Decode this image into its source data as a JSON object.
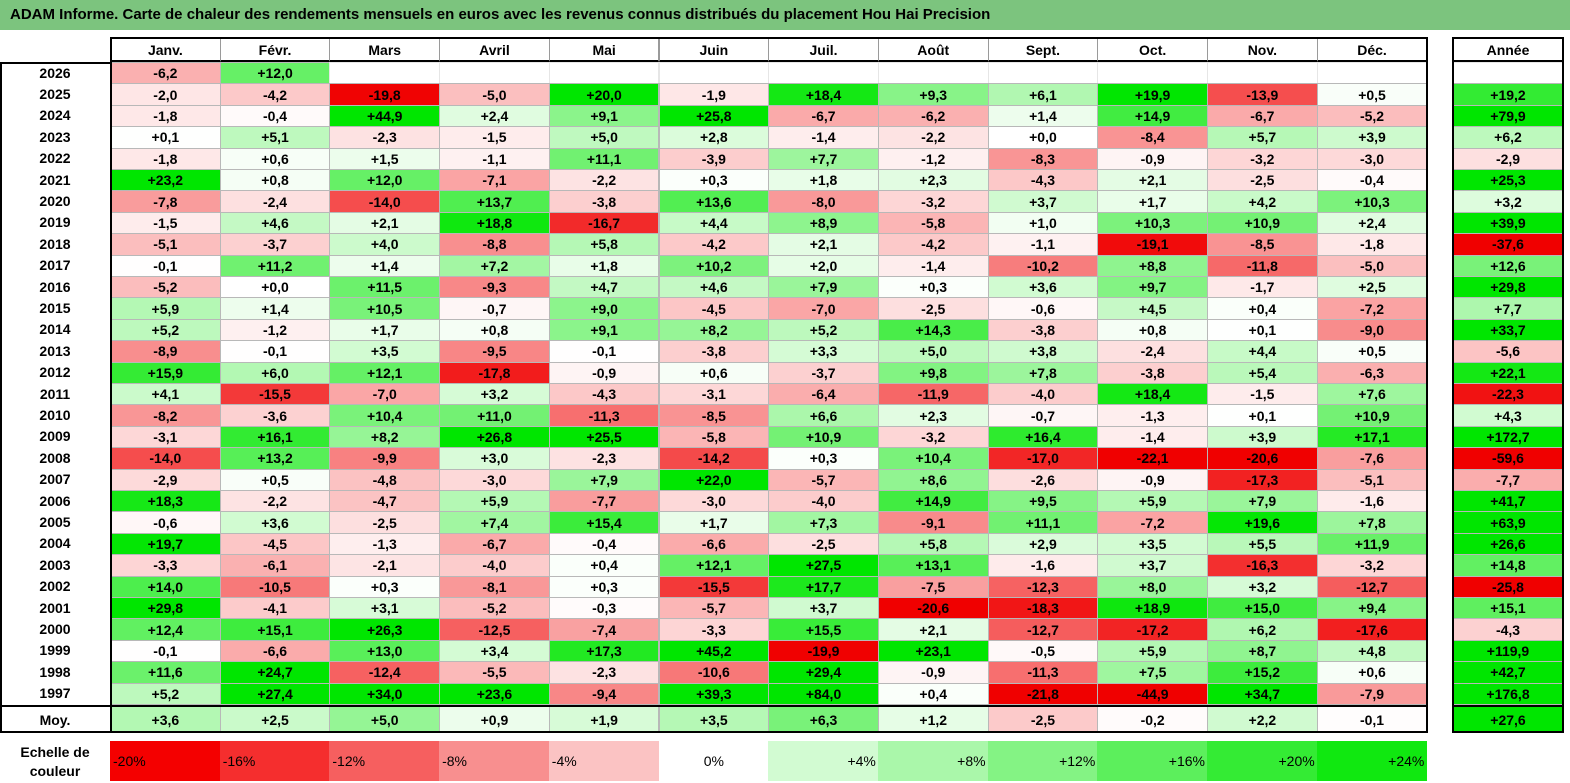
{
  "title": "ADAM Informe. Carte de chaleur des rendements mensuels en euros avec les revenus connus distribués du placement Hou Hai Precision",
  "chart_data": {
    "type": "heatmap",
    "columns": [
      "Janv.",
      "Févr.",
      "Mars",
      "Avril",
      "Mai",
      "Juin",
      "Juil.",
      "Août",
      "Sept.",
      "Oct.",
      "Nov.",
      "Déc."
    ],
    "year_column": "Année",
    "rows": [
      {
        "year": "2026",
        "months": [
          "-6,2",
          "+12,0",
          "",
          "",
          "",
          "",
          "",
          "",
          "",
          "",
          "",
          ""
        ],
        "total": ""
      },
      {
        "year": "2025",
        "months": [
          "-2,0",
          "-4,2",
          "-19,8",
          "-5,0",
          "+20,0",
          "-1,9",
          "+18,4",
          "+9,3",
          "+6,1",
          "+19,9",
          "-13,9",
          "+0,5"
        ],
        "total": "+19,2"
      },
      {
        "year": "2024",
        "months": [
          "-1,8",
          "-0,4",
          "+44,9",
          "+2,4",
          "+9,1",
          "+25,8",
          "-6,7",
          "-6,2",
          "+1,4",
          "+14,9",
          "-6,7",
          "-5,2"
        ],
        "total": "+79,9"
      },
      {
        "year": "2023",
        "months": [
          "+0,1",
          "+5,1",
          "-2,3",
          "-1,5",
          "+5,0",
          "+2,8",
          "-1,4",
          "-2,2",
          "+0,0",
          "-8,4",
          "+5,7",
          "+3,9"
        ],
        "total": "+6,2"
      },
      {
        "year": "2022",
        "months": [
          "-1,8",
          "+0,6",
          "+1,5",
          "-1,1",
          "+11,1",
          "-3,9",
          "+7,7",
          "-1,2",
          "-8,3",
          "-0,9",
          "-3,2",
          "-3,0"
        ],
        "total": "-2,9"
      },
      {
        "year": "2021",
        "months": [
          "+23,2",
          "+0,8",
          "+12,0",
          "-7,1",
          "-2,2",
          "+0,3",
          "+1,8",
          "+2,3",
          "-4,3",
          "+2,1",
          "-2,5",
          "-0,4"
        ],
        "total": "+25,3"
      },
      {
        "year": "2020",
        "months": [
          "-7,8",
          "-2,4",
          "-14,0",
          "+13,7",
          "-3,8",
          "+13,6",
          "-8,0",
          "-3,2",
          "+3,7",
          "+1,7",
          "+4,2",
          "+10,3"
        ],
        "total": "+3,2"
      },
      {
        "year": "2019",
        "months": [
          "-1,5",
          "+4,6",
          "+2,1",
          "+18,8",
          "-16,7",
          "+4,4",
          "+8,9",
          "-5,8",
          "+1,0",
          "+10,3",
          "+10,9",
          "+2,4"
        ],
        "total": "+39,9"
      },
      {
        "year": "2018",
        "months": [
          "-5,1",
          "-3,7",
          "+4,0",
          "-8,8",
          "+5,8",
          "-4,2",
          "+2,1",
          "-4,2",
          "-1,1",
          "-19,1",
          "-8,5",
          "-1,8"
        ],
        "total": "-37,6"
      },
      {
        "year": "2017",
        "months": [
          "-0,1",
          "+11,2",
          "+1,4",
          "+7,2",
          "+1,8",
          "+10,2",
          "+2,0",
          "-1,4",
          "-10,2",
          "+8,8",
          "-11,8",
          "-5,0"
        ],
        "total": "+12,6"
      },
      {
        "year": "2016",
        "months": [
          "-5,2",
          "+0,0",
          "+11,5",
          "-9,3",
          "+4,7",
          "+4,6",
          "+7,9",
          "+0,3",
          "+3,6",
          "+9,7",
          "-1,7",
          "+2,5"
        ],
        "total": "+29,8"
      },
      {
        "year": "2015",
        "months": [
          "+5,9",
          "+1,4",
          "+10,5",
          "-0,7",
          "+9,0",
          "-4,5",
          "-7,0",
          "-2,5",
          "-0,6",
          "+4,5",
          "+0,4",
          "-7,2"
        ],
        "total": "+7,7"
      },
      {
        "year": "2014",
        "months": [
          "+5,2",
          "-1,2",
          "+1,7",
          "+0,8",
          "+9,1",
          "+8,2",
          "+5,2",
          "+14,3",
          "-3,8",
          "+0,8",
          "+0,1",
          "-9,0"
        ],
        "total": "+33,7"
      },
      {
        "year": "2013",
        "months": [
          "-8,9",
          "-0,1",
          "+3,5",
          "-9,5",
          "-0,1",
          "-3,8",
          "+3,3",
          "+5,0",
          "+3,8",
          "-2,4",
          "+4,4",
          "+0,5"
        ],
        "total": "-5,6"
      },
      {
        "year": "2012",
        "months": [
          "+15,9",
          "+6,0",
          "+12,1",
          "-17,8",
          "-0,9",
          "+0,6",
          "-3,7",
          "+9,8",
          "+7,8",
          "-3,8",
          "+5,4",
          "-6,3"
        ],
        "total": "+22,1"
      },
      {
        "year": "2011",
        "months": [
          "+4,1",
          "-15,5",
          "-7,0",
          "+3,2",
          "-4,3",
          "-3,1",
          "-6,4",
          "-11,9",
          "-4,0",
          "+18,4",
          "-1,5",
          "+7,6"
        ],
        "total": "-22,3"
      },
      {
        "year": "2010",
        "months": [
          "-8,2",
          "-3,6",
          "+10,4",
          "+11,0",
          "-11,3",
          "-8,5",
          "+6,6",
          "+2,3",
          "-0,7",
          "-1,3",
          "+0,1",
          "+10,9"
        ],
        "total": "+4,3"
      },
      {
        "year": "2009",
        "months": [
          "-3,1",
          "+16,1",
          "+8,2",
          "+26,8",
          "+25,5",
          "-5,8",
          "+10,9",
          "-3,2",
          "+16,4",
          "-1,4",
          "+3,9",
          "+17,1"
        ],
        "total": "+172,7"
      },
      {
        "year": "2008",
        "months": [
          "-14,0",
          "+13,2",
          "-9,9",
          "+3,0",
          "-2,3",
          "-14,2",
          "+0,3",
          "+10,4",
          "-17,0",
          "-22,1",
          "-20,6",
          "-7,6"
        ],
        "total": "-59,6"
      },
      {
        "year": "2007",
        "months": [
          "-2,9",
          "+0,5",
          "-4,8",
          "-3,0",
          "+7,9",
          "+22,0",
          "-5,7",
          "+8,6",
          "-2,6",
          "-0,9",
          "-17,3",
          "-5,1"
        ],
        "total": "-7,7"
      },
      {
        "year": "2006",
        "months": [
          "+18,3",
          "-2,2",
          "-4,7",
          "+5,9",
          "-7,7",
          "-3,0",
          "-4,0",
          "+14,9",
          "+9,5",
          "+5,9",
          "+7,9",
          "-1,6"
        ],
        "total": "+41,7"
      },
      {
        "year": "2005",
        "months": [
          "-0,6",
          "+3,6",
          "-2,5",
          "+7,4",
          "+15,4",
          "+1,7",
          "+7,3",
          "-9,1",
          "+11,1",
          "-7,2",
          "+19,6",
          "+7,8"
        ],
        "total": "+63,9"
      },
      {
        "year": "2004",
        "months": [
          "+19,7",
          "-4,5",
          "-1,3",
          "-6,7",
          "-0,4",
          "-6,6",
          "-2,5",
          "+5,8",
          "+2,9",
          "+3,5",
          "+5,5",
          "+11,9"
        ],
        "total": "+26,6"
      },
      {
        "year": "2003",
        "months": [
          "-3,3",
          "-6,1",
          "-2,1",
          "-4,0",
          "+0,4",
          "+12,1",
          "+27,5",
          "+13,1",
          "-1,6",
          "+3,7",
          "-16,3",
          "-3,2"
        ],
        "total": "+14,8"
      },
      {
        "year": "2002",
        "months": [
          "+14,0",
          "-10,5",
          "+0,3",
          "-8,1",
          "+0,3",
          "-15,5",
          "+17,7",
          "-7,5",
          "-12,3",
          "+8,0",
          "+3,2",
          "-12,7"
        ],
        "total": "-25,8"
      },
      {
        "year": "2001",
        "months": [
          "+29,8",
          "-4,1",
          "+3,1",
          "-5,2",
          "-0,3",
          "-5,7",
          "+3,7",
          "-20,6",
          "-18,3",
          "+18,9",
          "+15,0",
          "+9,4"
        ],
        "total": "+15,1"
      },
      {
        "year": "2000",
        "months": [
          "+12,4",
          "+15,1",
          "+26,3",
          "-12,5",
          "-7,4",
          "-3,3",
          "+15,5",
          "+2,1",
          "-12,7",
          "-17,2",
          "+6,2",
          "-17,6"
        ],
        "total": "-4,3"
      },
      {
        "year": "1999",
        "months": [
          "-0,1",
          "-6,6",
          "+13,0",
          "+3,4",
          "+17,3",
          "+45,2",
          "-19,9",
          "+23,1",
          "-0,5",
          "+5,9",
          "+8,7",
          "+4,8"
        ],
        "total": "+119,9"
      },
      {
        "year": "1998",
        "months": [
          "+11,6",
          "+24,7",
          "-12,4",
          "-5,5",
          "-2,3",
          "-10,6",
          "+29,4",
          "-0,9",
          "-11,3",
          "+7,5",
          "+15,2",
          "+0,6"
        ],
        "total": "+42,7"
      },
      {
        "year": "1997",
        "months": [
          "+5,2",
          "+27,4",
          "+34,0",
          "+23,6",
          "-9,4",
          "+39,3",
          "+84,0",
          "+0,4",
          "-21,8",
          "-44,9",
          "+34,7",
          "-7,9"
        ],
        "total": "+176,8"
      }
    ],
    "average": {
      "label": "Moy.",
      "months": [
        "+3,6",
        "+2,5",
        "+5,0",
        "+0,9",
        "+1,9",
        "+3,5",
        "+6,3",
        "+1,2",
        "-2,5",
        "-0,2",
        "+2,2",
        "-0,1"
      ],
      "total": "+27,6"
    },
    "scale": {
      "label": "Echelle de couleur",
      "steps": [
        "-20%",
        "-16%",
        "-12%",
        "-8%",
        "-4%",
        "0%",
        "+4%",
        "+8%",
        "+12%",
        "+16%",
        "+20%",
        "+24%"
      ],
      "colors": [
        "#f40000",
        "#f52e2e",
        "#f65f5f",
        "#f88f8f",
        "#fbc3c3",
        "#ffffff",
        "#d2fbd2",
        "#aaf7aa",
        "#84f384",
        "#5cef5c",
        "#34eb34",
        "#10e810"
      ]
    },
    "color_scale": {
      "negative": "#f00000",
      "neutral": "#ffffff",
      "positive": "#00e600",
      "min": -20,
      "max": 24
    }
  }
}
